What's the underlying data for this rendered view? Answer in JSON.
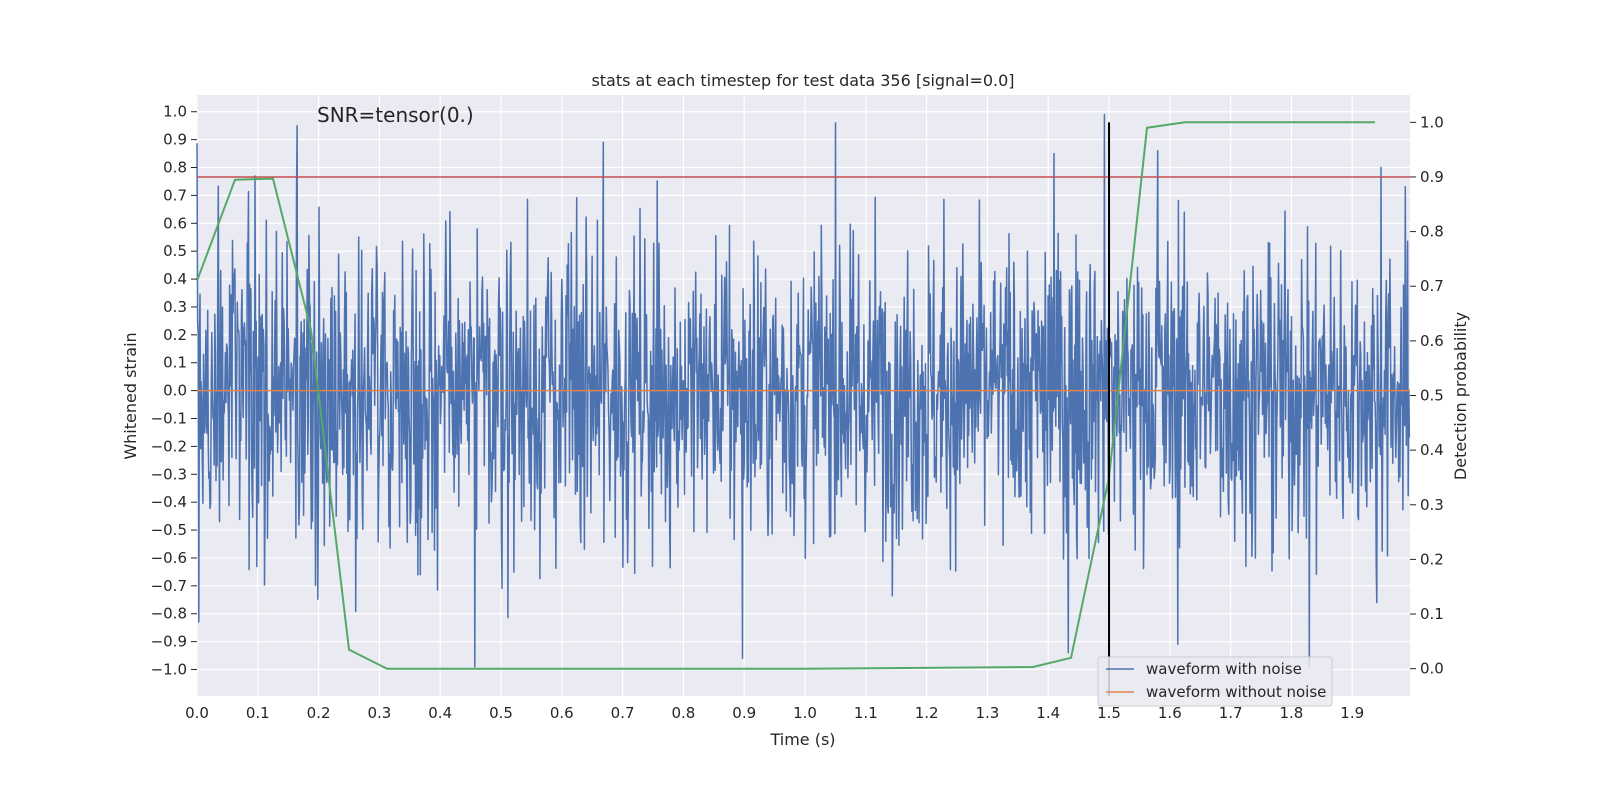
{
  "chart_data": {
    "type": "line",
    "title": "stats at each timestep for test data 356 [signal=0.0]",
    "annotation": "SNR=tensor(0.)",
    "xlabel": "Time (s)",
    "ylabel": "Whitened strain",
    "y2label": "Detection probability",
    "xlim": [
      0.0,
      1.995
    ],
    "ylim": [
      -1.095,
      1.06
    ],
    "y2lim": [
      -0.05,
      1.05
    ],
    "xticks": [
      "0.0",
      "0.1",
      "0.2",
      "0.3",
      "0.4",
      "0.5",
      "0.6",
      "0.7",
      "0.8",
      "0.9",
      "1.0",
      "1.1",
      "1.2",
      "1.3",
      "1.4",
      "1.5",
      "1.6",
      "1.7",
      "1.8",
      "1.9"
    ],
    "yticks": [
      "1.0",
      "0.9",
      "0.8",
      "0.7",
      "0.6",
      "0.5",
      "0.4",
      "0.3",
      "0.2",
      "0.1",
      "0.0",
      "-0.1",
      "-0.2",
      "-0.3",
      "-0.4",
      "-0.5",
      "-0.6",
      "-0.7",
      "-0.8",
      "-0.9",
      "-1.0"
    ],
    "y2ticks": [
      "1.0",
      "0.9",
      "0.8",
      "0.7",
      "0.6",
      "0.5",
      "0.4",
      "0.3",
      "0.2",
      "0.1",
      "0.0"
    ],
    "grid": true,
    "legend_position": "lower-right",
    "threshold": {
      "value": 0.9,
      "color": "#c44e52"
    },
    "vline": {
      "x": 1.5,
      "color": "#000000"
    },
    "noise": {
      "n_samples": 2048,
      "amplitude": 0.27,
      "color": "#4c72b0"
    },
    "series": [
      {
        "name": "waveform with noise",
        "axis": "left",
        "color": "#4c72b0",
        "note": "noise trace ~ +/-1.0, ~2048 samples"
      },
      {
        "name": "waveform without noise",
        "axis": "left",
        "color": "#dd8452",
        "x": [
          0.0,
          1.995
        ],
        "values": [
          0.0,
          0.0
        ]
      },
      {
        "name": "detection probability",
        "axis": "right",
        "color": "#55a868",
        "x": [
          0.0,
          0.0625,
          0.125,
          0.1875,
          0.25,
          0.3125,
          0.375,
          1.0,
          1.375,
          1.4375,
          1.5,
          1.5625,
          1.625,
          1.9375
        ],
        "values": [
          0.71,
          0.895,
          0.897,
          0.62,
          0.035,
          0.0,
          0.0,
          0.0,
          0.003,
          0.02,
          0.35,
          0.99,
          1.0,
          1.0
        ]
      }
    ],
    "spikes": [
      {
        "x": 0.003,
        "y": -0.83
      },
      {
        "x": 0.095,
        "y": 0.77
      },
      {
        "x": 0.165,
        "y": 0.95
      },
      {
        "x": 0.457,
        "y": -0.99
      },
      {
        "x": 0.668,
        "y": 0.89
      },
      {
        "x": 0.897,
        "y": -0.96
      },
      {
        "x": 1.05,
        "y": 0.96
      },
      {
        "x": 1.41,
        "y": 0.85
      },
      {
        "x": 1.433,
        "y": -0.94
      },
      {
        "x": 1.492,
        "y": 0.99
      },
      {
        "x": 1.58,
        "y": 0.86
      },
      {
        "x": 1.613,
        "y": -0.91
      },
      {
        "x": 1.829,
        "y": -0.99
      },
      {
        "x": 1.947,
        "y": 0.8
      },
      {
        "x": 1.94,
        "y": -0.76
      }
    ]
  }
}
